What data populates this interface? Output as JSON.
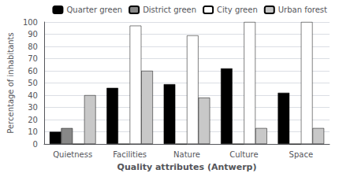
{
  "chart_data": {
    "type": "bar",
    "xlabel": "Quality attributes (Antwerp)",
    "ylabel": "Percentage of inhabitants",
    "categories": [
      "Quietness",
      "Facilities",
      "Nature",
      "Culture",
      "Space"
    ],
    "series": [
      {
        "name": "Quarter green",
        "color": "#000000",
        "values": [
          10,
          46,
          49,
          62,
          42
        ]
      },
      {
        "name": "District green",
        "color": "#888888",
        "values": [
          13,
          0,
          0,
          0,
          0
        ]
      },
      {
        "name": "City green",
        "color": "#ffffff",
        "values": [
          0,
          97,
          89,
          100,
          100
        ]
      },
      {
        "name": "Urban forest",
        "color": "#c8c8c8",
        "values": [
          40,
          60,
          38,
          13,
          13
        ]
      }
    ],
    "ylim": [
      0,
      100
    ],
    "yticks": [
      0,
      10,
      20,
      30,
      40,
      50,
      60,
      70,
      80,
      90,
      100
    ],
    "grid": true,
    "legend": "upper right"
  }
}
